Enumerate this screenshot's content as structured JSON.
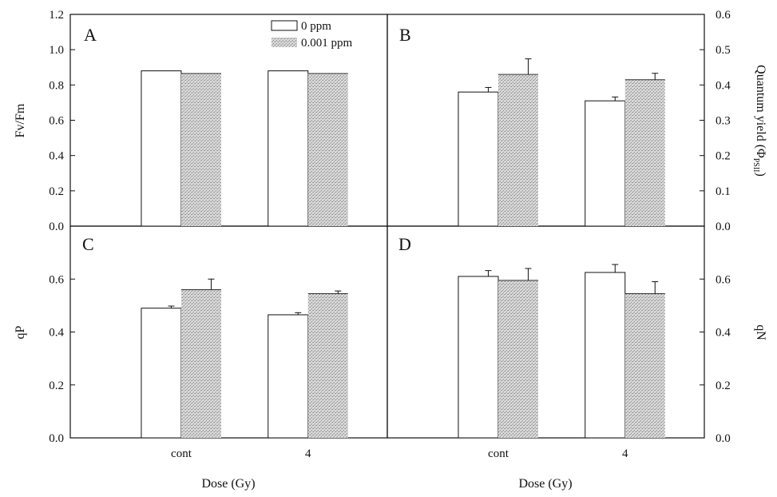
{
  "colors": {
    "bar_open": "#ffffff",
    "bar_stipple": "#c4c4c4",
    "axis": "#111111"
  },
  "legend": [
    {
      "label": "0 ppm",
      "style": "open"
    },
    {
      "label": "0.001 ppm",
      "style": "stipple"
    }
  ],
  "chart_data": [
    {
      "type": "bar",
      "panel": "A",
      "categories": [
        "cont",
        "4"
      ],
      "xlabel": "",
      "ylabel": "Fv/Fm",
      "ylim": [
        0,
        1.2
      ],
      "yticks": [
        "0.0",
        "0.2",
        "0.4",
        "0.6",
        "0.8",
        "1.0",
        "1.2"
      ],
      "series": [
        {
          "name": "0 ppm",
          "values": [
            0.88,
            0.88
          ],
          "errors": [
            0.0,
            0.0
          ]
        },
        {
          "name": "0.001 ppm",
          "values": [
            0.865,
            0.865
          ],
          "errors": [
            0.0,
            0.0
          ]
        }
      ]
    },
    {
      "type": "bar",
      "panel": "B",
      "categories": [
        "cont",
        "4"
      ],
      "xlabel": "",
      "ylabel": "Quantum yield (ΦPSII)",
      "ylabel_main": "Quantum yield (Φ",
      "ylabel_sub": "PSII",
      "ylabel_close": ")",
      "ylim": [
        0,
        0.6
      ],
      "yticks": [
        "0.0",
        "0.1",
        "0.2",
        "0.3",
        "0.4",
        "0.5",
        "0.6"
      ],
      "series": [
        {
          "name": "0 ppm",
          "values": [
            0.38,
            0.355
          ],
          "errors": [
            0.013,
            0.011
          ]
        },
        {
          "name": "0.001 ppm",
          "values": [
            0.43,
            0.415
          ],
          "errors": [
            0.044,
            0.018
          ]
        }
      ]
    },
    {
      "type": "bar",
      "panel": "C",
      "categories": [
        "cont",
        "4"
      ],
      "xlabel": "Dose (Gy)",
      "ylabel": "qP",
      "ylim": [
        0,
        0.8
      ],
      "yticks": [
        "0.0",
        "0.2",
        "0.4",
        "0.6"
      ],
      "series": [
        {
          "name": "0 ppm",
          "values": [
            0.49,
            0.465
          ],
          "errors": [
            0.008,
            0.008
          ]
        },
        {
          "name": "0.001 ppm",
          "values": [
            0.56,
            0.545
          ],
          "errors": [
            0.04,
            0.01
          ]
        }
      ]
    },
    {
      "type": "bar",
      "panel": "D",
      "categories": [
        "cont",
        "4"
      ],
      "xlabel": "Dose (Gy)",
      "ylabel": "qN",
      "ylim": [
        0,
        0.8
      ],
      "yticks": [
        "0.0",
        "0.2",
        "0.4",
        "0.6"
      ],
      "series": [
        {
          "name": "0 ppm",
          "values": [
            0.61,
            0.625
          ],
          "errors": [
            0.022,
            0.03
          ]
        },
        {
          "name": "0.001 ppm",
          "values": [
            0.595,
            0.545
          ],
          "errors": [
            0.045,
            0.045
          ]
        }
      ]
    }
  ]
}
